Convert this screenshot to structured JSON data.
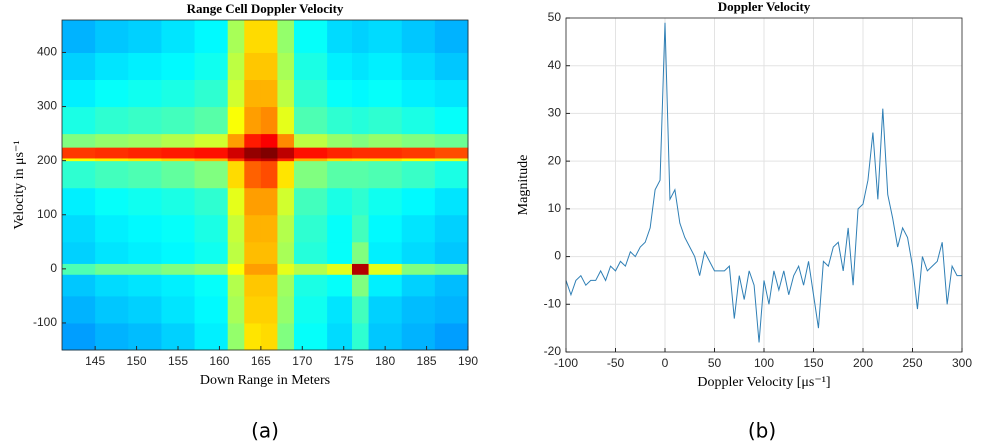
{
  "chart_data": [
    {
      "type": "heatmap",
      "title": "Range Cell Doppler Velocity",
      "xlabel": "Down Range in Meters",
      "ylabel": "Velocity in μs⁻¹",
      "caption": "(a)",
      "xlim": [
        141,
        190
      ],
      "ylim": [
        -150,
        460
      ],
      "xticks": [
        145,
        150,
        155,
        160,
        165,
        170,
        175,
        180,
        185,
        190
      ],
      "yticks": [
        -100,
        0,
        100,
        200,
        300,
        400
      ],
      "colormap": "jet",
      "xbins": [
        141,
        145,
        149,
        153,
        157,
        161,
        163,
        165,
        167,
        169,
        173,
        176,
        178,
        182,
        186,
        190
      ],
      "ybins": [
        -150,
        -100,
        -50,
        -10,
        10,
        50,
        100,
        150,
        200,
        205,
        225,
        250,
        300,
        350,
        400,
        460
      ],
      "z": [
        [
          0.28,
          0.3,
          0.31,
          0.33,
          0.36,
          0.52,
          0.65,
          0.66,
          0.5,
          0.38,
          0.34,
          0.42,
          0.32,
          0.3,
          0.28
        ],
        [
          0.3,
          0.32,
          0.33,
          0.35,
          0.37,
          0.54,
          0.67,
          0.67,
          0.52,
          0.39,
          0.35,
          0.44,
          0.33,
          0.31,
          0.3
        ],
        [
          0.32,
          0.34,
          0.35,
          0.36,
          0.38,
          0.55,
          0.68,
          0.68,
          0.53,
          0.4,
          0.38,
          0.5,
          0.36,
          0.33,
          0.31
        ],
        [
          0.45,
          0.48,
          0.48,
          0.5,
          0.52,
          0.62,
          0.72,
          0.72,
          0.6,
          0.55,
          0.6,
          0.95,
          0.6,
          0.5,
          0.48
        ],
        [
          0.33,
          0.35,
          0.36,
          0.37,
          0.39,
          0.56,
          0.69,
          0.69,
          0.54,
          0.41,
          0.38,
          0.5,
          0.36,
          0.34,
          0.32
        ],
        [
          0.34,
          0.36,
          0.37,
          0.38,
          0.4,
          0.57,
          0.7,
          0.7,
          0.55,
          0.42,
          0.38,
          0.44,
          0.37,
          0.35,
          0.33
        ],
        [
          0.36,
          0.38,
          0.39,
          0.4,
          0.42,
          0.6,
          0.72,
          0.72,
          0.58,
          0.44,
          0.4,
          0.42,
          0.39,
          0.37,
          0.35
        ],
        [
          0.42,
          0.44,
          0.45,
          0.47,
          0.5,
          0.66,
          0.78,
          0.8,
          0.65,
          0.5,
          0.46,
          0.46,
          0.45,
          0.43,
          0.4
        ],
        [
          0.62,
          0.64,
          0.65,
          0.67,
          0.7,
          0.82,
          0.92,
          0.94,
          0.84,
          0.7,
          0.66,
          0.65,
          0.65,
          0.63,
          0.6
        ],
        [
          0.82,
          0.83,
          0.84,
          0.85,
          0.86,
          0.92,
          0.98,
          1.0,
          0.94,
          0.86,
          0.84,
          0.83,
          0.83,
          0.82,
          0.8
        ],
        [
          0.5,
          0.52,
          0.53,
          0.55,
          0.58,
          0.72,
          0.85,
          0.88,
          0.74,
          0.56,
          0.52,
          0.5,
          0.52,
          0.5,
          0.48
        ],
        [
          0.4,
          0.42,
          0.43,
          0.44,
          0.46,
          0.62,
          0.72,
          0.74,
          0.6,
          0.45,
          0.42,
          0.41,
          0.42,
          0.4,
          0.38
        ],
        [
          0.36,
          0.38,
          0.39,
          0.4,
          0.42,
          0.58,
          0.7,
          0.7,
          0.56,
          0.42,
          0.38,
          0.37,
          0.38,
          0.36,
          0.35
        ],
        [
          0.33,
          0.35,
          0.36,
          0.37,
          0.39,
          0.56,
          0.68,
          0.68,
          0.54,
          0.4,
          0.36,
          0.35,
          0.36,
          0.34,
          0.32
        ],
        [
          0.3,
          0.32,
          0.33,
          0.35,
          0.37,
          0.54,
          0.66,
          0.66,
          0.52,
          0.38,
          0.34,
          0.33,
          0.34,
          0.32,
          0.3
        ]
      ]
    },
    {
      "type": "line",
      "title": "Doppler Velocity",
      "xlabel": "Doppler Velocity [μs⁻¹]",
      "ylabel": "Magnitude",
      "caption": "(b)",
      "xlim": [
        -100,
        300
      ],
      "ylim": [
        -20,
        50
      ],
      "xticks": [
        -100,
        -50,
        0,
        50,
        100,
        150,
        200,
        250,
        300
      ],
      "yticks": [
        -20,
        -10,
        0,
        10,
        20,
        30,
        40,
        50
      ],
      "grid": true,
      "x": [
        -100,
        -95,
        -90,
        -85,
        -80,
        -75,
        -70,
        -65,
        -60,
        -55,
        -50,
        -45,
        -40,
        -35,
        -30,
        -25,
        -20,
        -15,
        -10,
        -5,
        0,
        5,
        10,
        15,
        20,
        25,
        30,
        35,
        40,
        45,
        50,
        55,
        60,
        65,
        70,
        75,
        80,
        85,
        90,
        95,
        100,
        105,
        110,
        115,
        120,
        125,
        130,
        135,
        140,
        145,
        150,
        155,
        160,
        165,
        170,
        175,
        180,
        185,
        190,
        195,
        200,
        205,
        210,
        215,
        220,
        225,
        230,
        235,
        240,
        245,
        250,
        255,
        260,
        265,
        270,
        275,
        280,
        285,
        290,
        295,
        300
      ],
      "series": [
        {
          "color": "#2f7fb5",
          "values": [
            -5,
            -8,
            -5,
            -4,
            -6,
            -5,
            -5,
            -3,
            -5,
            -2,
            -3,
            -1,
            -2,
            1,
            0,
            2,
            3,
            6,
            14,
            16,
            49,
            12,
            14,
            7,
            4,
            2,
            0,
            -4,
            1,
            -1,
            -3,
            -3,
            -3,
            -2,
            -13,
            -4,
            -9,
            -3,
            -6,
            -18,
            -5,
            -10,
            -3,
            -7,
            -3,
            -8,
            -4,
            -2,
            -6,
            -1,
            -8,
            -15,
            -1,
            -2,
            2,
            3,
            -3,
            6,
            -6,
            10,
            11,
            16,
            26,
            12,
            31,
            13,
            8,
            2,
            6,
            4,
            -2,
            -11,
            0,
            -3,
            -2,
            -1,
            3,
            -10,
            -2,
            -4,
            -4
          ]
        }
      ]
    }
  ]
}
